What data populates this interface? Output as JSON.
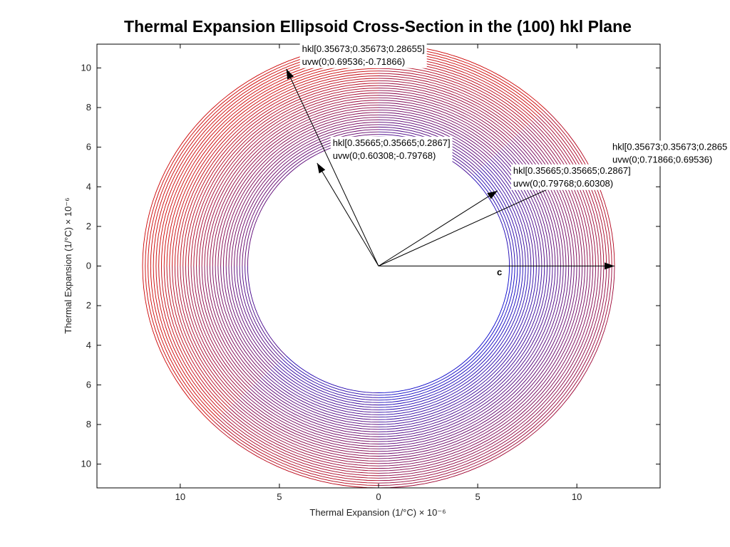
{
  "chart_data": {
    "type": "line",
    "title": "Thermal Expansion Ellipsoid Cross-Section in the (100) hkl Plane",
    "xlabel": "Thermal Expansion (1/°C) × 10⁻⁶",
    "ylabel": "Thermal Expansion (1/°C) × 10⁻⁶",
    "xlim": [
      -14.2,
      14.2
    ],
    "ylim": [
      -11.2,
      11.2
    ],
    "x_ticks": [
      -10,
      -5,
      0,
      5,
      10
    ],
    "x_tick_labels": [
      "10",
      "5",
      "0",
      "5",
      "10"
    ],
    "y_ticks": [
      10,
      8,
      6,
      4,
      2,
      0,
      -2,
      -4,
      -6,
      -8,
      -10
    ],
    "y_tick_labels": [
      "10",
      "8",
      "6",
      "4",
      "2",
      "0",
      "2",
      "4",
      "6",
      "8",
      "10"
    ],
    "grid": false,
    "ellipse_family": {
      "inner": {
        "a": 6.6,
        "b": 6.4
      },
      "outer": {
        "a": 11.9,
        "b": 11.2
      },
      "count": 40,
      "inner_color": "#0000cc",
      "outer_color": "#cc0000",
      "rotation_deg": -40
    },
    "vectors": [
      {
        "x": 11.9,
        "y": 0,
        "hkl": "",
        "uvw": "",
        "label": "c"
      },
      {
        "x": -4.65,
        "y": 9.95,
        "hkl": "hkl[0.35673;0.35673;0.28655]",
        "uvw": "uvw(0;0.69536;-0.71866)",
        "label": ""
      },
      {
        "x": -3.1,
        "y": 5.2,
        "hkl": "hkl[0.35665;0.35665;0.2867]",
        "uvw": "uvw(0;0.60308;-0.79768)",
        "label": ""
      },
      {
        "x": 6.0,
        "y": 3.8,
        "hkl": "hkl[0.35665;0.35665;0.2867]",
        "uvw": "uvw(0;0.79768;0.60308)",
        "label": ""
      },
      {
        "x": 11.0,
        "y": 5.0,
        "hkl": "hkl[0.35673;0.35673;0.2865",
        "uvw": "uvw(0;0.71866;0.69536)",
        "label": ""
      }
    ]
  }
}
